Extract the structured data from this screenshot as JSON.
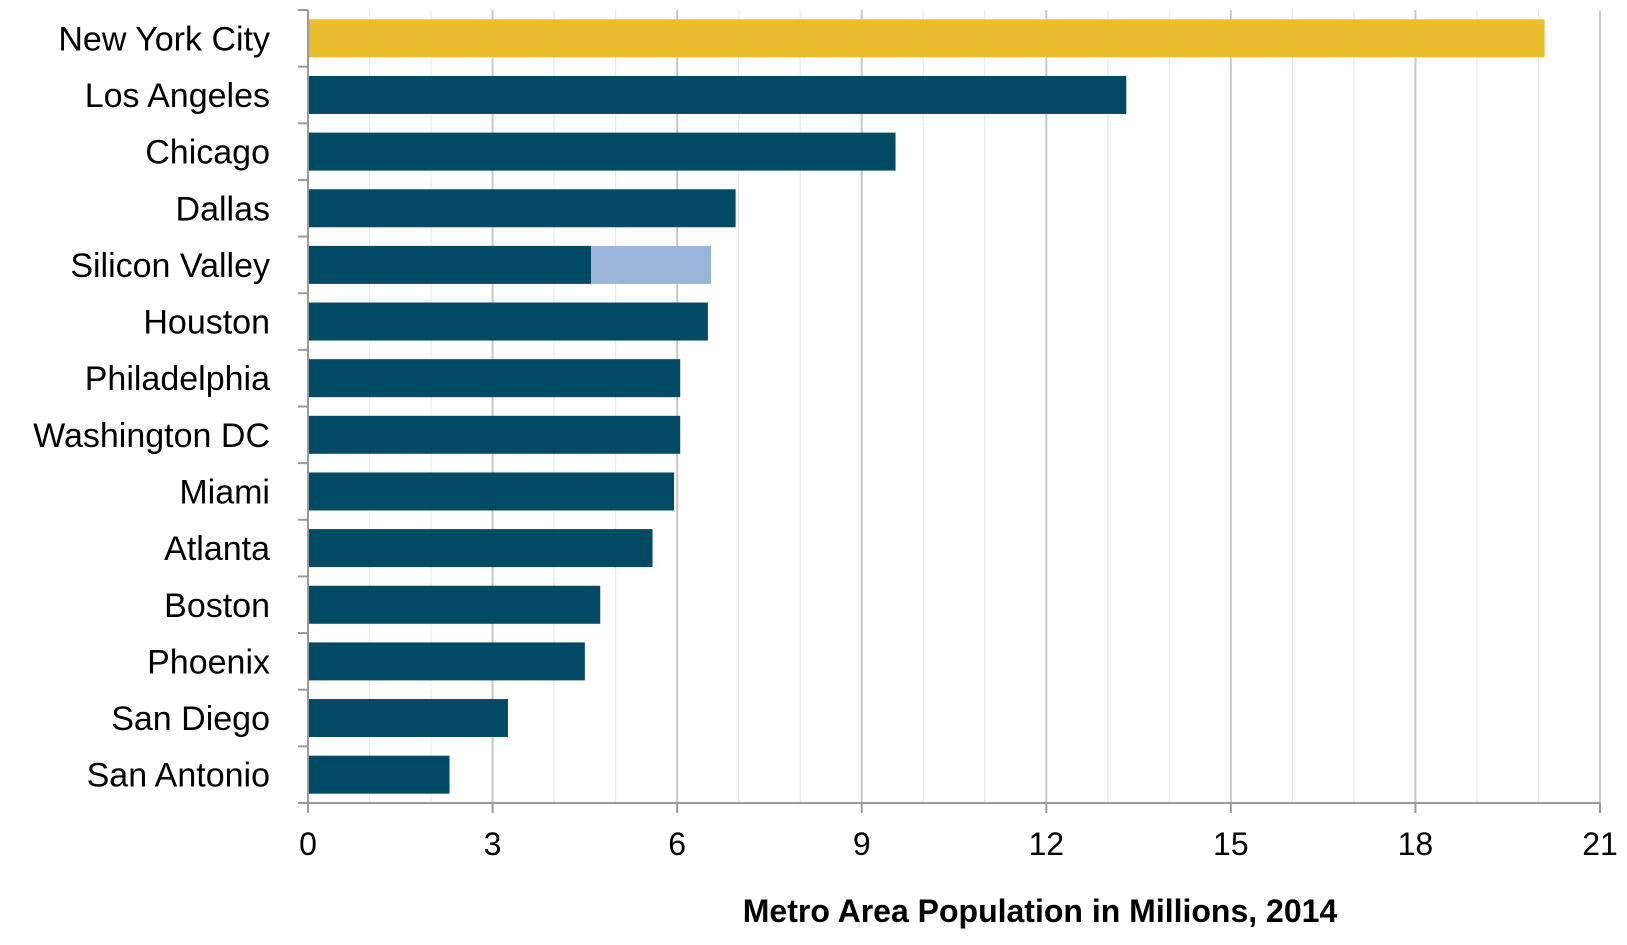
{
  "chart_data": {
    "type": "bar",
    "orientation": "horizontal",
    "stacked": true,
    "title": "",
    "xlabel": "Metro Area Population in Millions, 2014",
    "ylabel": "",
    "xlim": [
      0,
      21
    ],
    "xticks": [
      0,
      3,
      6,
      9,
      12,
      15,
      18,
      21
    ],
    "minor_grid": true,
    "grid": true,
    "legend": "none",
    "categories": [
      "New York City",
      "Los Angeles",
      "Chicago",
      "Dallas",
      "Silicon Valley",
      "Houston",
      "Philadelphia",
      "Washington DC",
      "Miami",
      "Atlanta",
      "Boston",
      "Phoenix",
      "San Diego",
      "San Antonio"
    ],
    "series": [
      {
        "values": [
          20.1,
          13.3,
          9.55,
          6.95,
          4.6,
          6.5,
          6.05,
          6.05,
          5.95,
          5.6,
          4.75,
          4.5,
          3.25,
          2.3
        ],
        "colors": [
          "#E9BD2C",
          "#004A63",
          "#004A63",
          "#004A63",
          "#004A63",
          "#004A63",
          "#004A63",
          "#004A63",
          "#004A63",
          "#004A63",
          "#004A63",
          "#004A63",
          "#004A63",
          "#004A63"
        ]
      },
      {
        "values": [
          0,
          0,
          0,
          0,
          1.95,
          0,
          0,
          0,
          0,
          0,
          0,
          0,
          0,
          0
        ],
        "colors": [
          "#99B5D7",
          "#99B5D7",
          "#99B5D7",
          "#99B5D7",
          "#99B5D7",
          "#99B5D7",
          "#99B5D7",
          "#99B5D7",
          "#99B5D7",
          "#99B5D7",
          "#99B5D7",
          "#99B5D7",
          "#99B5D7",
          "#99B5D7"
        ]
      }
    ],
    "colors": {
      "highlight": "#E9BD2C",
      "primary": "#004A63",
      "secondary": "#99B5D7",
      "grid_major": "#C8C8C8",
      "grid_minor": "#EAEAEA",
      "axis": "#9A9A9A"
    }
  }
}
